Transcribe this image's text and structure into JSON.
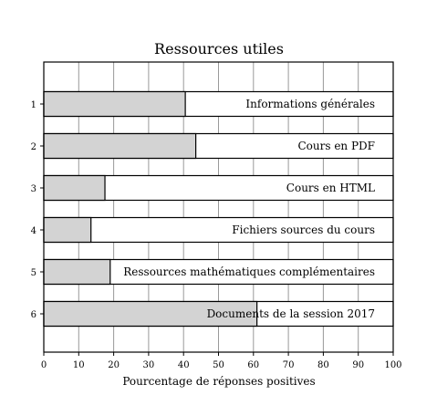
{
  "chart_data": {
    "type": "bar",
    "orientation": "horizontal",
    "title": "Ressources utiles",
    "xlabel": "Pourcentage de réponses positives",
    "ylabel": "",
    "xlim": [
      0,
      100
    ],
    "xticks": [
      0,
      10,
      20,
      30,
      40,
      50,
      60,
      70,
      80,
      90,
      100
    ],
    "grid": "vertical",
    "bar_background_max": 100,
    "fill_color": "#d3d3d3",
    "categories": [
      "1",
      "2",
      "3",
      "4",
      "5",
      "6"
    ],
    "series": [
      {
        "values": [
          40.5,
          43.5,
          17.5,
          13.5,
          19,
          61
        ]
      }
    ],
    "bar_labels": [
      "Informations générales",
      "Cours en PDF",
      "Cours en HTML",
      "Fichiers sources du cours",
      "Ressources mathématiques complémentaires",
      "Documents de la session 2017"
    ]
  }
}
